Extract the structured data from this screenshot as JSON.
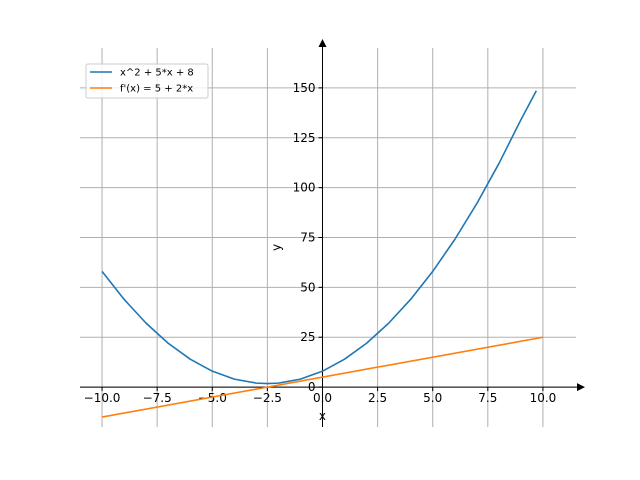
{
  "chart_data": {
    "type": "line",
    "xlabel": "x",
    "ylabel": "y",
    "xlim": [
      -11.0,
      11.5
    ],
    "ylim": [
      -20,
      170
    ],
    "x_ticks": [
      {
        "value": -10.0,
        "label": "−10.0"
      },
      {
        "value": -7.5,
        "label": "−7.5"
      },
      {
        "value": -5.0,
        "label": "−5.0"
      },
      {
        "value": -2.5,
        "label": "−2.5"
      },
      {
        "value": 0.0,
        "label": "0.0"
      },
      {
        "value": 2.5,
        "label": "2.5"
      },
      {
        "value": 5.0,
        "label": "5.0"
      },
      {
        "value": 7.5,
        "label": "7.5"
      },
      {
        "value": 10.0,
        "label": "10.0"
      }
    ],
    "y_ticks": [
      {
        "value": 0,
        "label": "0"
      },
      {
        "value": 25,
        "label": "25"
      },
      {
        "value": 50,
        "label": "50"
      },
      {
        "value": 75,
        "label": "75"
      },
      {
        "value": 100,
        "label": "100"
      },
      {
        "value": 125,
        "label": "125"
      },
      {
        "value": 150,
        "label": "150"
      }
    ],
    "grid": true,
    "legend_position": "top-left",
    "series": [
      {
        "name": "x^2 + 5*x + 8",
        "color": "#1f77b4",
        "x": [
          -10,
          -9,
          -8,
          -7,
          -6,
          -5,
          -4,
          -3,
          -2.5,
          -2,
          -1,
          0,
          1,
          2,
          3,
          4,
          5,
          6,
          7,
          8,
          9,
          9.7
        ],
        "y": [
          58,
          44,
          32,
          22,
          14,
          8,
          4,
          2,
          1.75,
          2,
          4,
          8,
          14,
          22,
          32,
          44,
          58,
          74,
          92,
          112,
          134,
          148.6
        ]
      },
      {
        "name": "f'(x) = 5 + 2*x",
        "color": "#ff7f0e",
        "x": [
          -10,
          10
        ],
        "y": [
          -15,
          25
        ]
      }
    ]
  }
}
